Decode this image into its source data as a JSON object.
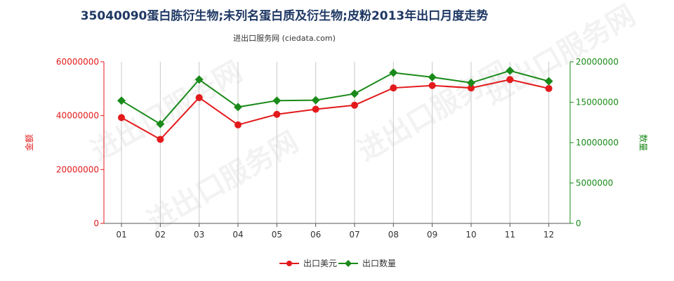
{
  "chart_data": {
    "type": "line",
    "title": "35040090蛋白胨衍生物;未列名蛋白质及衍生物;皮粉2013年出口月度走势",
    "subtitle": "进出口服务网 (ciedata.com)",
    "watermark": "进出口服务网",
    "categories": [
      "01",
      "02",
      "03",
      "04",
      "05",
      "06",
      "07",
      "08",
      "09",
      "10",
      "11",
      "12"
    ],
    "left_axis": {
      "label": "金额",
      "color": "#e31a1c",
      "ylim": [
        0,
        60000000
      ],
      "ticks": [
        "0",
        "20000000",
        "40000000",
        "60000000"
      ],
      "tick_values": [
        0,
        20000000,
        40000000,
        60000000
      ]
    },
    "right_axis": {
      "label": "数量",
      "color": "#1a8a1a",
      "ylim": [
        0,
        20000000
      ],
      "ticks": [
        "0",
        "5000000",
        "10000000",
        "15000000",
        "20000000"
      ],
      "tick_values": [
        0,
        5000000,
        10000000,
        15000000,
        20000000
      ]
    },
    "series": [
      {
        "name": "出口美元",
        "axis": "left",
        "color": "#e31a1c",
        "marker": "circle",
        "values": [
          39300000,
          31200000,
          46700000,
          36600000,
          40500000,
          42400000,
          43900000,
          50300000,
          51200000,
          50300000,
          53400000,
          50100000
        ]
      },
      {
        "name": "出口数量",
        "axis": "right",
        "color": "#1a8a1a",
        "marker": "diamond",
        "values": [
          15200000,
          12300000,
          17800000,
          14400000,
          15200000,
          15250000,
          16050000,
          18650000,
          18100000,
          17400000,
          18900000,
          17600000
        ]
      }
    ],
    "grid": "vertical",
    "legend_position": "bottom-center"
  }
}
